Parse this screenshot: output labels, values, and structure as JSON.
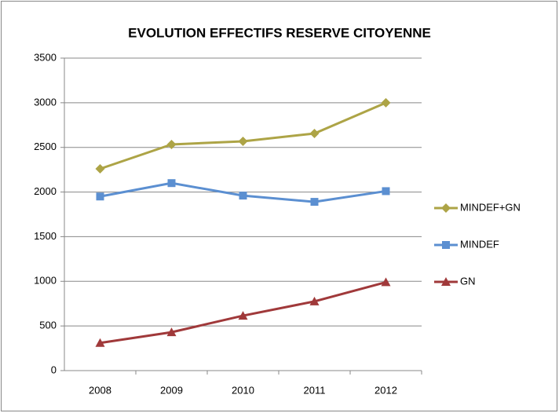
{
  "chart_data": {
    "type": "line",
    "title": "EVOLUTION EFFECTIFS RESERVE CITOYENNE",
    "categories": [
      "2008",
      "2009",
      "2010",
      "2011",
      "2012"
    ],
    "series": [
      {
        "name": "MINDEF+GN",
        "color": "#ada446",
        "marker": "diamond",
        "values": [
          2260,
          2533,
          2568,
          2656,
          3000
        ]
      },
      {
        "name": "MINDEF",
        "color": "#5b8fd1",
        "marker": "square",
        "values": [
          1950,
          2100,
          1960,
          1890,
          2010
        ]
      },
      {
        "name": "GN",
        "color": "#a0393a",
        "marker": "triangle",
        "values": [
          310,
          430,
          615,
          775,
          990
        ]
      }
    ],
    "ylim": [
      0,
      3500
    ],
    "yticks": [
      0,
      500,
      1000,
      1500,
      2000,
      2500,
      3000,
      3500
    ],
    "grid": true,
    "legend": "right"
  }
}
